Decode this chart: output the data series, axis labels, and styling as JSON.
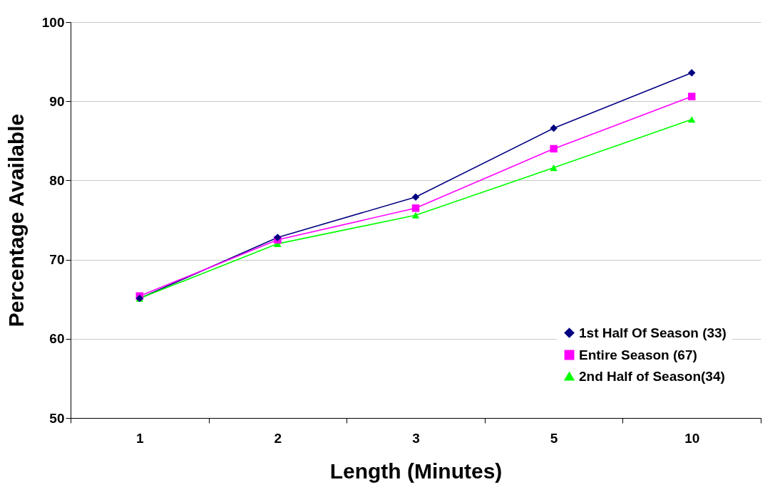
{
  "chart_data": {
    "type": "line",
    "xlabel": "Length (Minutes)",
    "ylabel": "Percentage Available",
    "categories": [
      "1",
      "2",
      "3",
      "5",
      "10"
    ],
    "series": [
      {
        "name": "1st Half Of Season (33)",
        "color": "#000080",
        "marker": "diamond",
        "values": [
          65.1,
          72.8,
          77.9,
          86.6,
          93.6
        ]
      },
      {
        "name": "Entire Season (67)",
        "color": "#ff00ff",
        "marker": "square",
        "values": [
          65.4,
          72.5,
          76.5,
          84.0,
          90.6
        ]
      },
      {
        "name": "2nd Half of Season(34)",
        "color": "#00ff00",
        "marker": "triangle",
        "values": [
          65.1,
          72.0,
          75.6,
          81.6,
          87.7
        ]
      }
    ],
    "ylim": [
      50,
      100
    ],
    "yticks": [
      50,
      60,
      70,
      80,
      90,
      100
    ],
    "grid": "y",
    "legend": "bottom right",
    "line_style": "solid"
  }
}
